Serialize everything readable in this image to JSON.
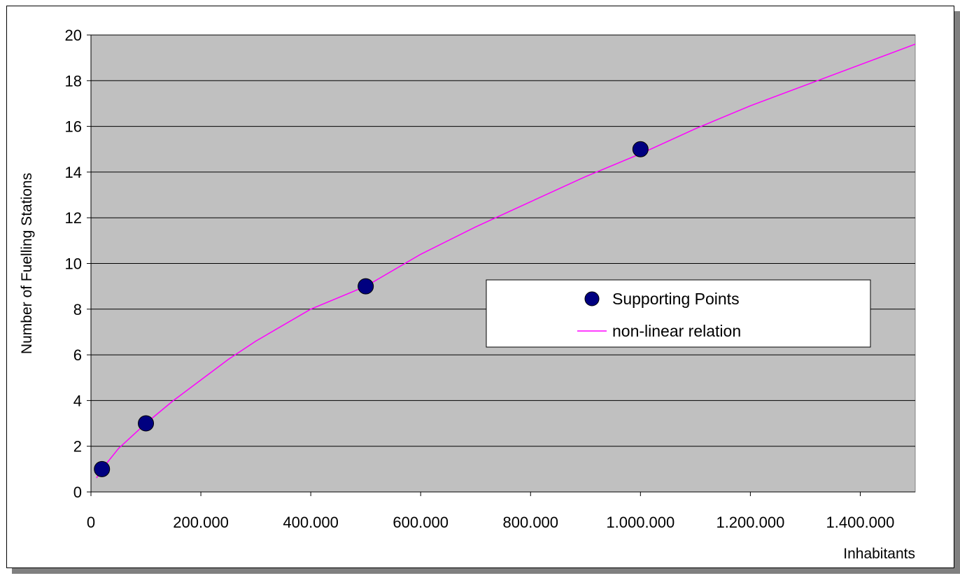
{
  "chart_data": {
    "type": "scatter",
    "title": "",
    "xlabel": "Inhabitants",
    "ylabel": "Number of Fuelling Stations",
    "xlim": [
      0,
      1500000
    ],
    "ylim": [
      0,
      20
    ],
    "x_ticks": [
      0,
      200000,
      400000,
      600000,
      800000,
      1000000,
      1200000,
      1400000
    ],
    "x_tick_labels": [
      "0",
      "200.000",
      "400.000",
      "600.000",
      "800.000",
      "1.000.000",
      "1.200.000",
      "1.400.000"
    ],
    "y_ticks": [
      0,
      2,
      4,
      6,
      8,
      10,
      12,
      14,
      16,
      18,
      20
    ],
    "y_tick_labels": [
      "0",
      "2",
      "4",
      "6",
      "8",
      "10",
      "12",
      "14",
      "16",
      "18",
      "20"
    ],
    "grid": true,
    "background_color": "#C0C0C0",
    "legend_position": "center-right",
    "series": [
      {
        "name": "Supporting Points",
        "kind": "markers",
        "color": "#000080",
        "x": [
          20000,
          100000,
          500000,
          1000000
        ],
        "y": [
          1,
          3,
          9,
          15
        ]
      },
      {
        "name": "non-linear relation",
        "kind": "line",
        "color": "#FF00FF",
        "x": [
          10000,
          20000,
          50000,
          100000,
          150000,
          200000,
          250000,
          300000,
          400000,
          500000,
          600000,
          700000,
          800000,
          900000,
          1000000,
          1100000,
          1200000,
          1300000,
          1400000,
          1500000
        ],
        "y": [
          0.61,
          1.0,
          1.9,
          3.0,
          4.0,
          4.9,
          5.8,
          6.6,
          8.0,
          9.0,
          10.4,
          11.6,
          12.7,
          13.8,
          14.8,
          15.9,
          16.9,
          17.8,
          18.7,
          19.6
        ]
      }
    ]
  }
}
